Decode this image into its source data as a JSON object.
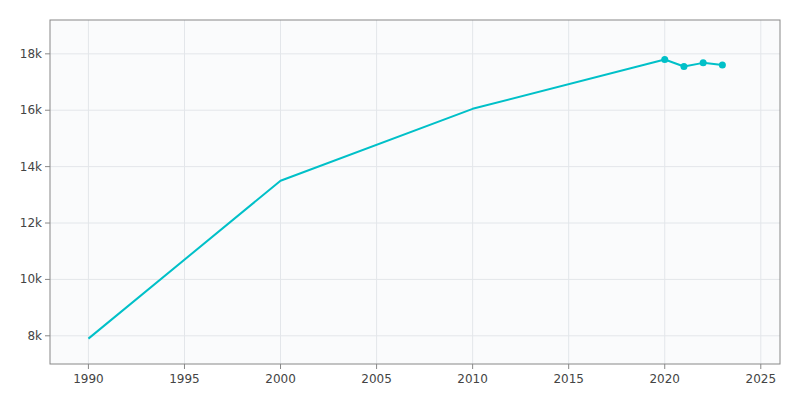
{
  "chart_data": {
    "type": "line",
    "x": [
      1990,
      2000,
      2010,
      2020,
      2021,
      2022,
      2023
    ],
    "series": [
      {
        "type": "line",
        "color": "#00C0C8",
        "line_style": "solid",
        "values": [
          7900,
          13500,
          16050,
          17800,
          17550,
          17680,
          17600
        ]
      },
      {
        "type": "scatter",
        "color": "#00C0C8",
        "marker": "circle",
        "values": [
          null,
          null,
          null,
          17800,
          17550,
          17680,
          17600
        ]
      }
    ],
    "xlim": [
      1988,
      2026
    ],
    "xticks": [
      1990,
      1995,
      2000,
      2005,
      2010,
      2015,
      2020,
      2025
    ],
    "ylim": [
      7000,
      19200
    ],
    "yticks": [
      {
        "value": 8000,
        "label": "8k"
      },
      {
        "value": 10000,
        "label": "10k"
      },
      {
        "value": 12000,
        "label": "12k"
      },
      {
        "value": 14000,
        "label": "14k"
      },
      {
        "value": 16000,
        "label": "16k"
      },
      {
        "value": 18000,
        "label": "18k"
      }
    ],
    "grid": true
  }
}
